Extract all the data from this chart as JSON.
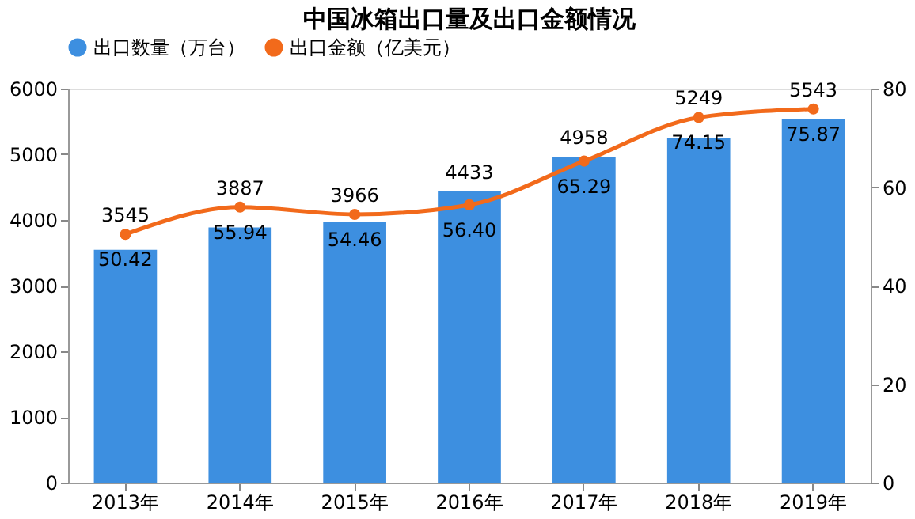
{
  "chart_data": {
    "type": "bar",
    "title": "中国冰箱出口量及出口金额情况",
    "categories": [
      "2013年",
      "2014年",
      "2015年",
      "2016年",
      "2017年",
      "2018年",
      "2019年"
    ],
    "series": [
      {
        "name": "出口数量（万台）",
        "color": "#3d8fe0",
        "values": [
          3545,
          3887,
          3966,
          4433,
          4958,
          5249,
          5543
        ]
      },
      {
        "name": "出口金额（亿美元）",
        "color": "#f26a1b",
        "type": "line",
        "axis": "y2",
        "marker": "circle",
        "values": [
          50.42,
          55.94,
          54.46,
          56.4,
          65.29,
          74.15,
          75.87
        ],
        "value_labels": [
          "50.42",
          "55.94",
          "54.46",
          "56.40",
          "65.29",
          "74.15",
          "75.87"
        ]
      }
    ],
    "ylim": [
      0,
      6000
    ],
    "yticks": [
      0,
      1000,
      2000,
      3000,
      4000,
      5000,
      6000
    ],
    "y2lim": [
      0,
      80
    ],
    "y2ticks": [
      0,
      20,
      40,
      60,
      80
    ],
    "data_labels": true,
    "legend": "top",
    "grid": false
  }
}
